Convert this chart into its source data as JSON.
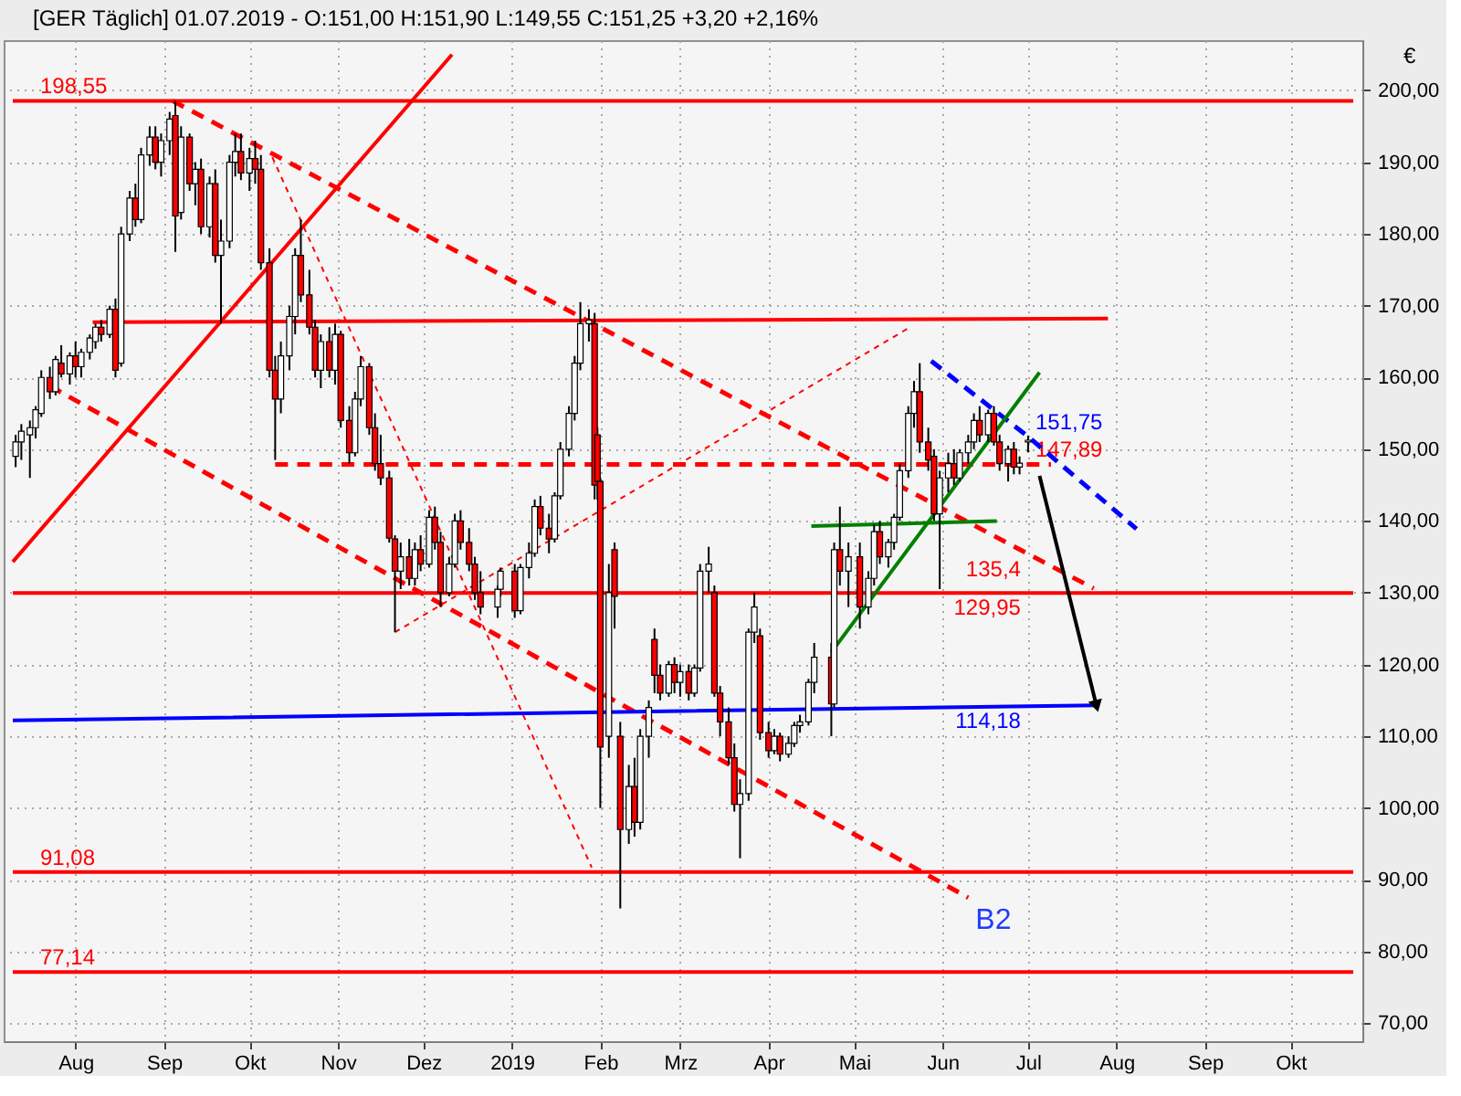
{
  "chart_data": {
    "type": "candlestick",
    "title": "[GER Täglich] 01.07.2019 - O:151,00 H:151,90 L:149,55 C:151,25 +3,20 +2,16%",
    "ylabel": "€",
    "x": [
      "2018-07-11",
      "2018-07-13",
      "2018-07-16",
      "2018-07-18",
      "2018-07-20",
      "2018-07-23",
      "2018-07-25",
      "2018-07-27",
      "2018-07-30",
      "2018-08-01",
      "2018-08-03",
      "2018-08-06",
      "2018-08-08",
      "2018-08-10",
      "2018-08-13",
      "2018-08-15",
      "2018-08-17",
      "2018-08-20",
      "2018-08-22",
      "2018-08-24",
      "2018-08-27",
      "2018-08-29",
      "2018-08-31",
      "2018-09-03",
      "2018-09-05",
      "2018-09-07",
      "2018-09-10",
      "2018-09-12",
      "2018-09-14",
      "2018-09-17",
      "2018-09-19",
      "2018-09-21",
      "2018-09-24",
      "2018-09-26",
      "2018-09-28",
      "2018-10-01",
      "2018-10-03",
      "2018-10-05",
      "2018-10-08",
      "2018-10-10",
      "2018-10-12",
      "2018-10-15",
      "2018-10-17",
      "2018-10-19",
      "2018-10-22",
      "2018-10-24",
      "2018-10-26",
      "2018-10-29",
      "2018-10-31",
      "2018-11-02",
      "2018-11-05",
      "2018-11-07",
      "2018-11-09",
      "2018-11-12",
      "2018-11-14",
      "2018-11-16",
      "2018-11-19",
      "2018-11-21",
      "2018-11-23",
      "2018-11-26",
      "2018-11-28",
      "2018-11-30",
      "2018-12-03",
      "2018-12-05",
      "2018-12-07",
      "2018-12-10",
      "2018-12-12",
      "2018-12-14",
      "2018-12-17",
      "2018-12-19",
      "2018-12-21",
      "2018-12-27",
      "2018-12-28",
      "2019-01-02",
      "2019-01-04",
      "2019-01-07",
      "2019-01-09",
      "2019-01-11",
      "2019-01-14",
      "2019-01-16",
      "2019-01-18",
      "2019-01-21",
      "2019-01-23",
      "2019-01-25",
      "2019-01-28",
      "2019-01-30",
      "2019-01-31",
      "2019-02-01",
      "2019-02-04",
      "2019-02-06",
      "2019-02-08",
      "2019-02-11",
      "2019-02-13",
      "2019-02-15",
      "2019-02-18",
      "2019-02-20",
      "2019-02-22",
      "2019-02-25",
      "2019-02-27",
      "2019-03-01",
      "2019-03-04",
      "2019-03-06",
      "2019-03-08",
      "2019-03-11",
      "2019-03-13",
      "2019-03-15",
      "2019-03-18",
      "2019-03-20",
      "2019-03-22",
      "2019-03-25",
      "2019-03-27",
      "2019-03-29",
      "2019-04-01",
      "2019-04-03",
      "2019-04-05",
      "2019-04-08",
      "2019-04-10",
      "2019-04-12",
      "2019-04-15",
      "2019-04-17",
      "2019-04-23",
      "2019-04-24",
      "2019-04-26",
      "2019-04-29",
      "2019-05-03",
      "2019-05-06",
      "2019-05-08",
      "2019-05-10",
      "2019-05-13",
      "2019-05-15",
      "2019-05-17",
      "2019-05-20",
      "2019-05-22",
      "2019-05-24",
      "2019-05-27",
      "2019-05-29",
      "2019-05-31",
      "2019-06-03",
      "2019-06-05",
      "2019-06-07",
      "2019-06-10",
      "2019-06-12",
      "2019-06-14",
      "2019-06-17",
      "2019-06-19",
      "2019-06-21",
      "2019-06-24",
      "2019-06-26",
      "2019-06-28",
      "2019-07-01"
    ],
    "ohlc": [
      [
        149,
        152,
        147.5,
        151
      ],
      [
        151,
        153.5,
        148.5,
        152.5
      ],
      [
        152,
        154,
        146,
        153
      ],
      [
        153,
        156,
        151.5,
        155.5
      ],
      [
        155,
        161,
        154.5,
        160
      ],
      [
        160,
        161.5,
        157,
        158
      ],
      [
        158,
        163,
        157.5,
        162.5
      ],
      [
        162,
        164.5,
        160,
        160.5
      ],
      [
        160.5,
        163.5,
        159,
        163
      ],
      [
        163,
        165,
        160,
        161.5
      ],
      [
        161.5,
        164,
        160,
        163.5
      ],
      [
        163.5,
        166,
        162.5,
        165.5
      ],
      [
        165,
        167.5,
        164,
        167
      ],
      [
        167,
        168,
        165,
        166
      ],
      [
        166,
        170,
        165.5,
        169.5
      ],
      [
        169.5,
        171,
        160,
        161
      ],
      [
        162,
        181,
        161.5,
        180
      ],
      [
        180,
        186,
        179,
        185
      ],
      [
        185,
        187,
        181,
        182
      ],
      [
        182,
        192,
        181.5,
        191
      ],
      [
        191,
        195,
        189.5,
        193.5
      ],
      [
        193.5,
        195,
        189,
        190
      ],
      [
        190,
        194,
        188,
        193
      ],
      [
        193,
        197,
        191,
        196
      ],
      [
        196.5,
        198.55,
        177.5,
        182.5
      ],
      [
        183,
        195,
        182,
        193.5
      ],
      [
        193.5,
        194,
        186,
        187
      ],
      [
        187,
        190,
        184,
        189
      ],
      [
        189,
        190.5,
        180,
        181
      ],
      [
        181,
        188,
        179.5,
        187
      ],
      [
        187,
        189,
        176,
        177
      ],
      [
        177,
        182,
        167.5,
        179
      ],
      [
        179,
        191,
        178,
        190
      ],
      [
        190,
        194,
        188,
        191.5
      ],
      [
        191.5,
        194,
        187.5,
        188.5
      ],
      [
        188.5,
        192,
        186,
        190.5
      ],
      [
        190.5,
        193,
        187,
        189
      ],
      [
        189,
        191,
        175,
        176
      ],
      [
        176,
        178,
        160,
        161
      ],
      [
        161,
        163,
        148.5,
        157
      ],
      [
        157,
        165,
        155,
        163
      ],
      [
        163,
        170,
        161,
        168.5
      ],
      [
        168.5,
        178,
        166,
        177
      ],
      [
        177,
        182,
        170.5,
        171.5
      ],
      [
        171.5,
        175,
        166,
        167
      ],
      [
        167,
        168,
        160,
        161
      ],
      [
        161,
        166,
        158.5,
        165
      ],
      [
        165,
        167,
        160,
        161
      ],
      [
        161,
        167.5,
        159,
        166
      ],
      [
        166,
        166.5,
        153,
        154
      ],
      [
        154,
        156,
        148,
        149.5
      ],
      [
        149.5,
        158,
        149,
        157
      ],
      [
        157,
        163,
        156,
        161.5
      ],
      [
        161.5,
        162,
        152,
        153
      ],
      [
        153,
        155,
        147,
        148
      ],
      [
        148,
        152,
        145,
        146
      ],
      [
        146,
        147,
        137,
        137.6
      ],
      [
        137.5,
        138,
        124.5,
        133
      ],
      [
        133,
        137,
        130.5,
        135
      ],
      [
        135,
        137.5,
        131,
        132
      ],
      [
        132,
        137,
        131,
        136
      ],
      [
        136,
        138,
        133,
        134
      ],
      [
        134,
        141.5,
        133.5,
        140.5
      ],
      [
        140.5,
        142,
        136,
        137
      ],
      [
        137,
        138.5,
        128,
        130
      ],
      [
        130,
        135,
        129.5,
        134
      ],
      [
        134,
        141,
        133.5,
        140
      ],
      [
        140,
        141.5,
        136,
        137
      ],
      [
        137,
        139,
        133,
        134
      ],
      [
        134,
        135,
        129,
        130
      ],
      [
        130,
        133,
        127,
        128
      ],
      [
        128,
        131,
        126.5,
        130.5
      ],
      [
        130.5,
        133.5,
        129.5,
        133
      ],
      [
        133,
        134,
        126.5,
        127.5
      ],
      [
        127.5,
        134,
        127,
        133.5
      ],
      [
        133.5,
        137,
        132,
        135.5
      ],
      [
        135.5,
        143,
        135,
        142
      ],
      [
        142,
        143.5,
        138,
        139
      ],
      [
        139,
        141,
        135.5,
        137.5
      ],
      [
        137.5,
        144,
        137,
        143.5
      ],
      [
        143.5,
        151,
        143,
        150
      ],
      [
        150,
        156,
        149,
        155
      ],
      [
        155,
        163,
        154,
        162
      ],
      [
        162,
        170.5,
        161,
        167.5
      ],
      [
        167.5,
        169.5,
        165,
        168
      ],
      [
        167.5,
        169,
        143,
        145
      ],
      [
        152,
        153,
        143,
        145.5
      ],
      [
        145.5,
        146,
        100,
        108.5
      ],
      [
        110,
        134,
        107,
        130
      ],
      [
        136,
        137,
        125,
        129.5
      ],
      [
        110,
        112,
        86,
        97
      ],
      [
        97,
        106,
        95,
        103
      ],
      [
        103,
        107,
        96,
        98
      ],
      [
        98,
        111,
        97,
        110
      ],
      [
        110,
        115,
        107,
        114
      ],
      [
        123.5,
        125,
        116,
        118.5
      ],
      [
        118.5,
        120,
        115,
        116
      ],
      [
        116,
        120.5,
        115.5,
        120
      ],
      [
        120,
        121,
        116,
        117.5
      ],
      [
        117.5,
        120,
        115.5,
        119
      ],
      [
        119,
        120,
        115,
        116
      ],
      [
        116,
        120,
        115.5,
        119.5
      ],
      [
        119.5,
        134,
        119,
        133
      ],
      [
        133,
        136.4,
        130,
        134
      ],
      [
        130,
        131,
        115.5,
        116
      ],
      [
        116,
        117,
        110,
        112
      ],
      [
        112,
        114,
        106,
        107
      ],
      [
        107,
        109,
        99.5,
        100.5
      ],
      [
        100.5,
        104,
        93,
        102
      ],
      [
        102,
        125,
        101,
        124.5
      ],
      [
        124.5,
        130,
        123,
        128
      ],
      [
        124,
        125,
        109.5,
        110.5
      ],
      [
        110.5,
        112,
        107,
        108
      ],
      [
        108,
        111,
        107.5,
        110
      ],
      [
        110,
        110.5,
        106.5,
        107.5
      ],
      [
        107.5,
        110,
        107,
        109
      ],
      [
        109,
        112,
        108.5,
        111.5
      ],
      [
        111.5,
        113,
        110.5,
        112
      ],
      [
        112,
        118,
        111.5,
        117.5
      ],
      [
        117.5,
        123,
        116,
        121
      ],
      [
        121,
        123,
        110,
        114.5
      ],
      [
        114.5,
        137,
        114,
        136
      ],
      [
        136,
        142,
        131,
        133
      ],
      [
        133,
        137,
        128,
        135
      ],
      [
        135,
        137,
        125,
        128
      ],
      [
        128,
        133,
        127,
        132
      ],
      [
        132,
        139.5,
        131,
        138.5
      ],
      [
        138.5,
        140,
        134,
        135
      ],
      [
        135,
        137.5,
        133.5,
        137
      ],
      [
        137,
        141,
        136,
        140.5
      ],
      [
        140.5,
        148,
        140,
        147
      ],
      [
        147,
        156,
        146,
        155
      ],
      [
        155,
        159.5,
        153,
        158
      ],
      [
        158,
        162,
        149.5,
        151
      ],
      [
        151,
        153,
        147,
        148.5
      ],
      [
        149,
        150,
        140,
        141
      ],
      [
        141,
        147,
        130.5,
        146
      ],
      [
        146,
        149.5,
        144,
        148
      ],
      [
        148,
        150,
        145,
        146
      ],
      [
        146,
        150,
        145.5,
        149.5
      ],
      [
        149.5,
        152,
        148,
        151
      ],
      [
        151,
        155,
        150,
        154
      ],
      [
        154,
        156,
        151,
        152
      ],
      [
        152,
        155.5,
        151,
        155
      ],
      [
        155,
        156,
        150.5,
        151
      ],
      [
        151,
        152,
        147,
        148
      ],
      [
        148,
        150.5,
        145.5,
        150
      ],
      [
        150,
        151,
        146.5,
        147.5
      ],
      [
        147.5,
        149,
        146.5,
        148.05
      ],
      [
        151.0,
        151.9,
        149.55,
        151.25
      ]
    ],
    "colors": [
      "#ffffff",
      "#ffffff",
      "#ffffff",
      "#ffffff",
      "#ffffff",
      "#ff0000",
      "#ffffff",
      "#ff0000",
      "#ffffff",
      "#ff0000",
      "#ffffff",
      "#ffffff",
      "#ffffff",
      "#ff0000",
      "#ffffff",
      "#ff0000",
      "#ffffff",
      "#ffffff",
      "#ff0000",
      "#ffffff",
      "#ffffff",
      "#ff0000",
      "#ffffff",
      "#ffffff",
      "#ff0000",
      "#ffffff",
      "#ff0000",
      "#ffffff",
      "#ff0000",
      "#ffffff",
      "#ff0000",
      "#ffffff",
      "#ffffff",
      "#ffffff",
      "#ff0000",
      "#ffffff",
      "#ff0000",
      "#ff0000",
      "#ff0000",
      "#ff0000",
      "#ffffff",
      "#ffffff",
      "#ffffff",
      "#ff0000",
      "#ff0000",
      "#ff0000",
      "#ffffff",
      "#ff0000",
      "#ffffff",
      "#ff0000",
      "#ff0000",
      "#ffffff",
      "#ffffff",
      "#ff0000",
      "#ff0000",
      "#ff0000",
      "#ff0000",
      "#ff0000",
      "#ffffff",
      "#ff0000",
      "#ffffff",
      "#ff0000",
      "#ffffff",
      "#ff0000",
      "#ff0000",
      "#ffffff",
      "#ffffff",
      "#ff0000",
      "#ff0000",
      "#ff0000",
      "#ff0000",
      "#ffffff",
      "#ffffff",
      "#ff0000",
      "#ffffff",
      "#ffffff",
      "#ffffff",
      "#ff0000",
      "#ff0000",
      "#ffffff",
      "#ffffff",
      "#ffffff",
      "#ffffff",
      "#ffffff",
      "#ffffff",
      "#ff0000",
      "#ff0000",
      "#ff0000",
      "#ffffff",
      "#ff0000",
      "#ff0000",
      "#ffffff",
      "#ff0000",
      "#ffffff",
      "#ffffff",
      "#ff0000",
      "#ff0000",
      "#ffffff",
      "#ff0000",
      "#ffffff",
      "#ff0000",
      "#ffffff",
      "#ffffff",
      "#ffffff",
      "#ff0000",
      "#ff0000",
      "#ff0000",
      "#ff0000",
      "#ffffff",
      "#ffffff",
      "#ffffff",
      "#ff0000",
      "#ff0000",
      "#ffffff",
      "#ff0000",
      "#ffffff",
      "#ffffff",
      "#ffffff",
      "#ffffff",
      "#ffffff",
      "#ff0000",
      "#ffffff",
      "#ff0000",
      "#ffffff",
      "#ff0000",
      "#ffffff",
      "#ffffff",
      "#ff0000",
      "#ffffff",
      "#ffffff",
      "#ffffff",
      "#ffffff",
      "#ffffff",
      "#ff0000",
      "#ff0000",
      "#ff0000",
      "#ffffff",
      "#ffffff",
      "#ff0000",
      "#ffffff",
      "#ffffff",
      "#ffffff",
      "#ff0000",
      "#ffffff",
      "#ff0000",
      "#ff0000",
      "#ffffff",
      "#ff0000",
      "#ffffff",
      "#ffffff"
    ],
    "series": [
      {
        "type": "line",
        "color": "#ff0000",
        "line_style": "solid",
        "x": [
          "2018-07-10",
          "2018-12-11"
        ],
        "values": [
          134.3,
          205.0
        ]
      },
      {
        "type": "line",
        "color": "#ff0000",
        "line_style": "solid",
        "x": [
          "2018-08-07",
          "2019-07-29"
        ],
        "values": [
          167.7,
          168.2
        ]
      },
      {
        "type": "line",
        "color": "#ff0000",
        "line_style": "dashed",
        "x": [
          "2018-10-10",
          "2019-07-01",
          "2019-07-09"
        ],
        "values": [
          147.89,
          147.89,
          147.89
        ],
        "value_labels": [
          null,
          "147,89",
          null
        ]
      },
      {
        "type": "line",
        "color": "#ff0000",
        "line_style": "dashed",
        "x": [
          "2018-09-04",
          "2019-07-01",
          "2019-07-24"
        ],
        "values": [
          198.55,
          135.4,
          130.6
        ],
        "value_labels": [
          null,
          "135,4",
          null
        ]
      },
      {
        "type": "line",
        "name": "B2",
        "color": "#ff0000",
        "line_style": "dashed",
        "x": [
          "2018-07-23",
          "2019-06-10"
        ],
        "values": [
          158.8,
          87.5
        ]
      },
      {
        "type": "line",
        "color": "#ff0000",
        "line_style": "dotted",
        "x": [
          "2018-10-09",
          "2019-01-29"
        ],
        "values": [
          190.7,
          91.7
        ]
      },
      {
        "type": "line",
        "color": "#ff0000",
        "line_style": "dotted",
        "x": [
          "2018-11-21",
          "2019-05-21"
        ],
        "values": [
          124.5,
          167.1
        ]
      },
      {
        "type": "line",
        "color": "#ff0000",
        "line_style": "solid",
        "x": [
          "2018-07-10",
          "2019-07-01",
          "2019-10-23"
        ],
        "values": [
          129.95,
          129.95,
          129.95
        ],
        "value_labels": [
          null,
          "129,95",
          null
        ]
      },
      {
        "type": "line",
        "color": "#0000ff",
        "line_style": "solid",
        "x": [
          "2018-07-10",
          "2019-07-01",
          "2019-07-25"
        ],
        "values": [
          112.2,
          114.18,
          114.3
        ],
        "value_labels": [
          null,
          "114,18",
          null
        ]
      },
      {
        "type": "line",
        "color": "#0000ff",
        "line_style": "dashed",
        "x": [
          "2019-05-28",
          "2019-07-01",
          "2019-08-08"
        ],
        "values": [
          162.3,
          151.75,
          138.9
        ],
        "value_labels": [
          null,
          "151,75",
          null
        ]
      },
      {
        "type": "line",
        "color": "#008000",
        "line_style": "solid",
        "x": [
          "2019-04-16",
          "2019-06-20"
        ],
        "values": [
          139.3,
          140.0
        ]
      },
      {
        "type": "line",
        "color": "#008000",
        "line_style": "solid",
        "x": [
          "2019-04-23",
          "2019-07-05"
        ],
        "values": [
          121.7,
          160.7
        ]
      },
      {
        "type": "line",
        "color": "#000000",
        "line_style": "solid",
        "marker": "triangle",
        "x": [
          "2019-07-05",
          "2019-07-25"
        ],
        "values": [
          146.3,
          114.2
        ]
      }
    ],
    "ref_lines": [
      {
        "axis": "y",
        "value": 198.55,
        "label": "198,55",
        "color": "#ff0000"
      },
      {
        "axis": "y",
        "value": 91.08,
        "label": "91,08",
        "color": "#ff0000"
      },
      {
        "axis": "y",
        "value": 77.14,
        "label": "77,14",
        "color": "#ff0000"
      }
    ],
    "xlim": [
      "2018-07-10",
      "2019-10-23"
    ],
    "xticks": [
      {
        "value": "2018-08-01",
        "label": "Aug"
      },
      {
        "value": "2018-09-01",
        "label": "Sep"
      },
      {
        "value": "2018-10-01",
        "label": "Okt"
      },
      {
        "value": "2018-11-01",
        "label": "Nov"
      },
      {
        "value": "2018-12-01",
        "label": "Dez"
      },
      {
        "value": "2019-01-01",
        "label": "2019"
      },
      {
        "value": "2019-02-01",
        "label": "Feb"
      },
      {
        "value": "2019-03-01",
        "label": "Mrz"
      },
      {
        "value": "2019-04-01",
        "label": "Apr"
      },
      {
        "value": "2019-05-01",
        "label": "Mai"
      },
      {
        "value": "2019-06-01",
        "label": "Jun"
      },
      {
        "value": "2019-07-01",
        "label": "Jul"
      },
      {
        "value": "2019-08-01",
        "label": "Aug"
      },
      {
        "value": "2019-09-01",
        "label": "Sep"
      },
      {
        "value": "2019-10-01",
        "label": "Okt"
      }
    ],
    "ylim": [
      67.5,
      207.0
    ],
    "yticks": [
      {
        "value": 70,
        "label": "70,00"
      },
      {
        "value": 80,
        "label": "80,00"
      },
      {
        "value": 90,
        "label": "90,00"
      },
      {
        "value": 100,
        "label": "100,00"
      },
      {
        "value": 110,
        "label": "110,00"
      },
      {
        "value": 120,
        "label": "120,00"
      },
      {
        "value": 130,
        "label": "130,00"
      },
      {
        "value": 140,
        "label": "140,00"
      },
      {
        "value": 150,
        "label": "150,00"
      },
      {
        "value": 160,
        "label": "160,00"
      },
      {
        "value": 170,
        "label": "170,00"
      },
      {
        "value": 180,
        "label": "180,00"
      },
      {
        "value": 190,
        "label": "190,00"
      },
      {
        "value": 200,
        "label": "200,00"
      }
    ],
    "grid": true
  }
}
